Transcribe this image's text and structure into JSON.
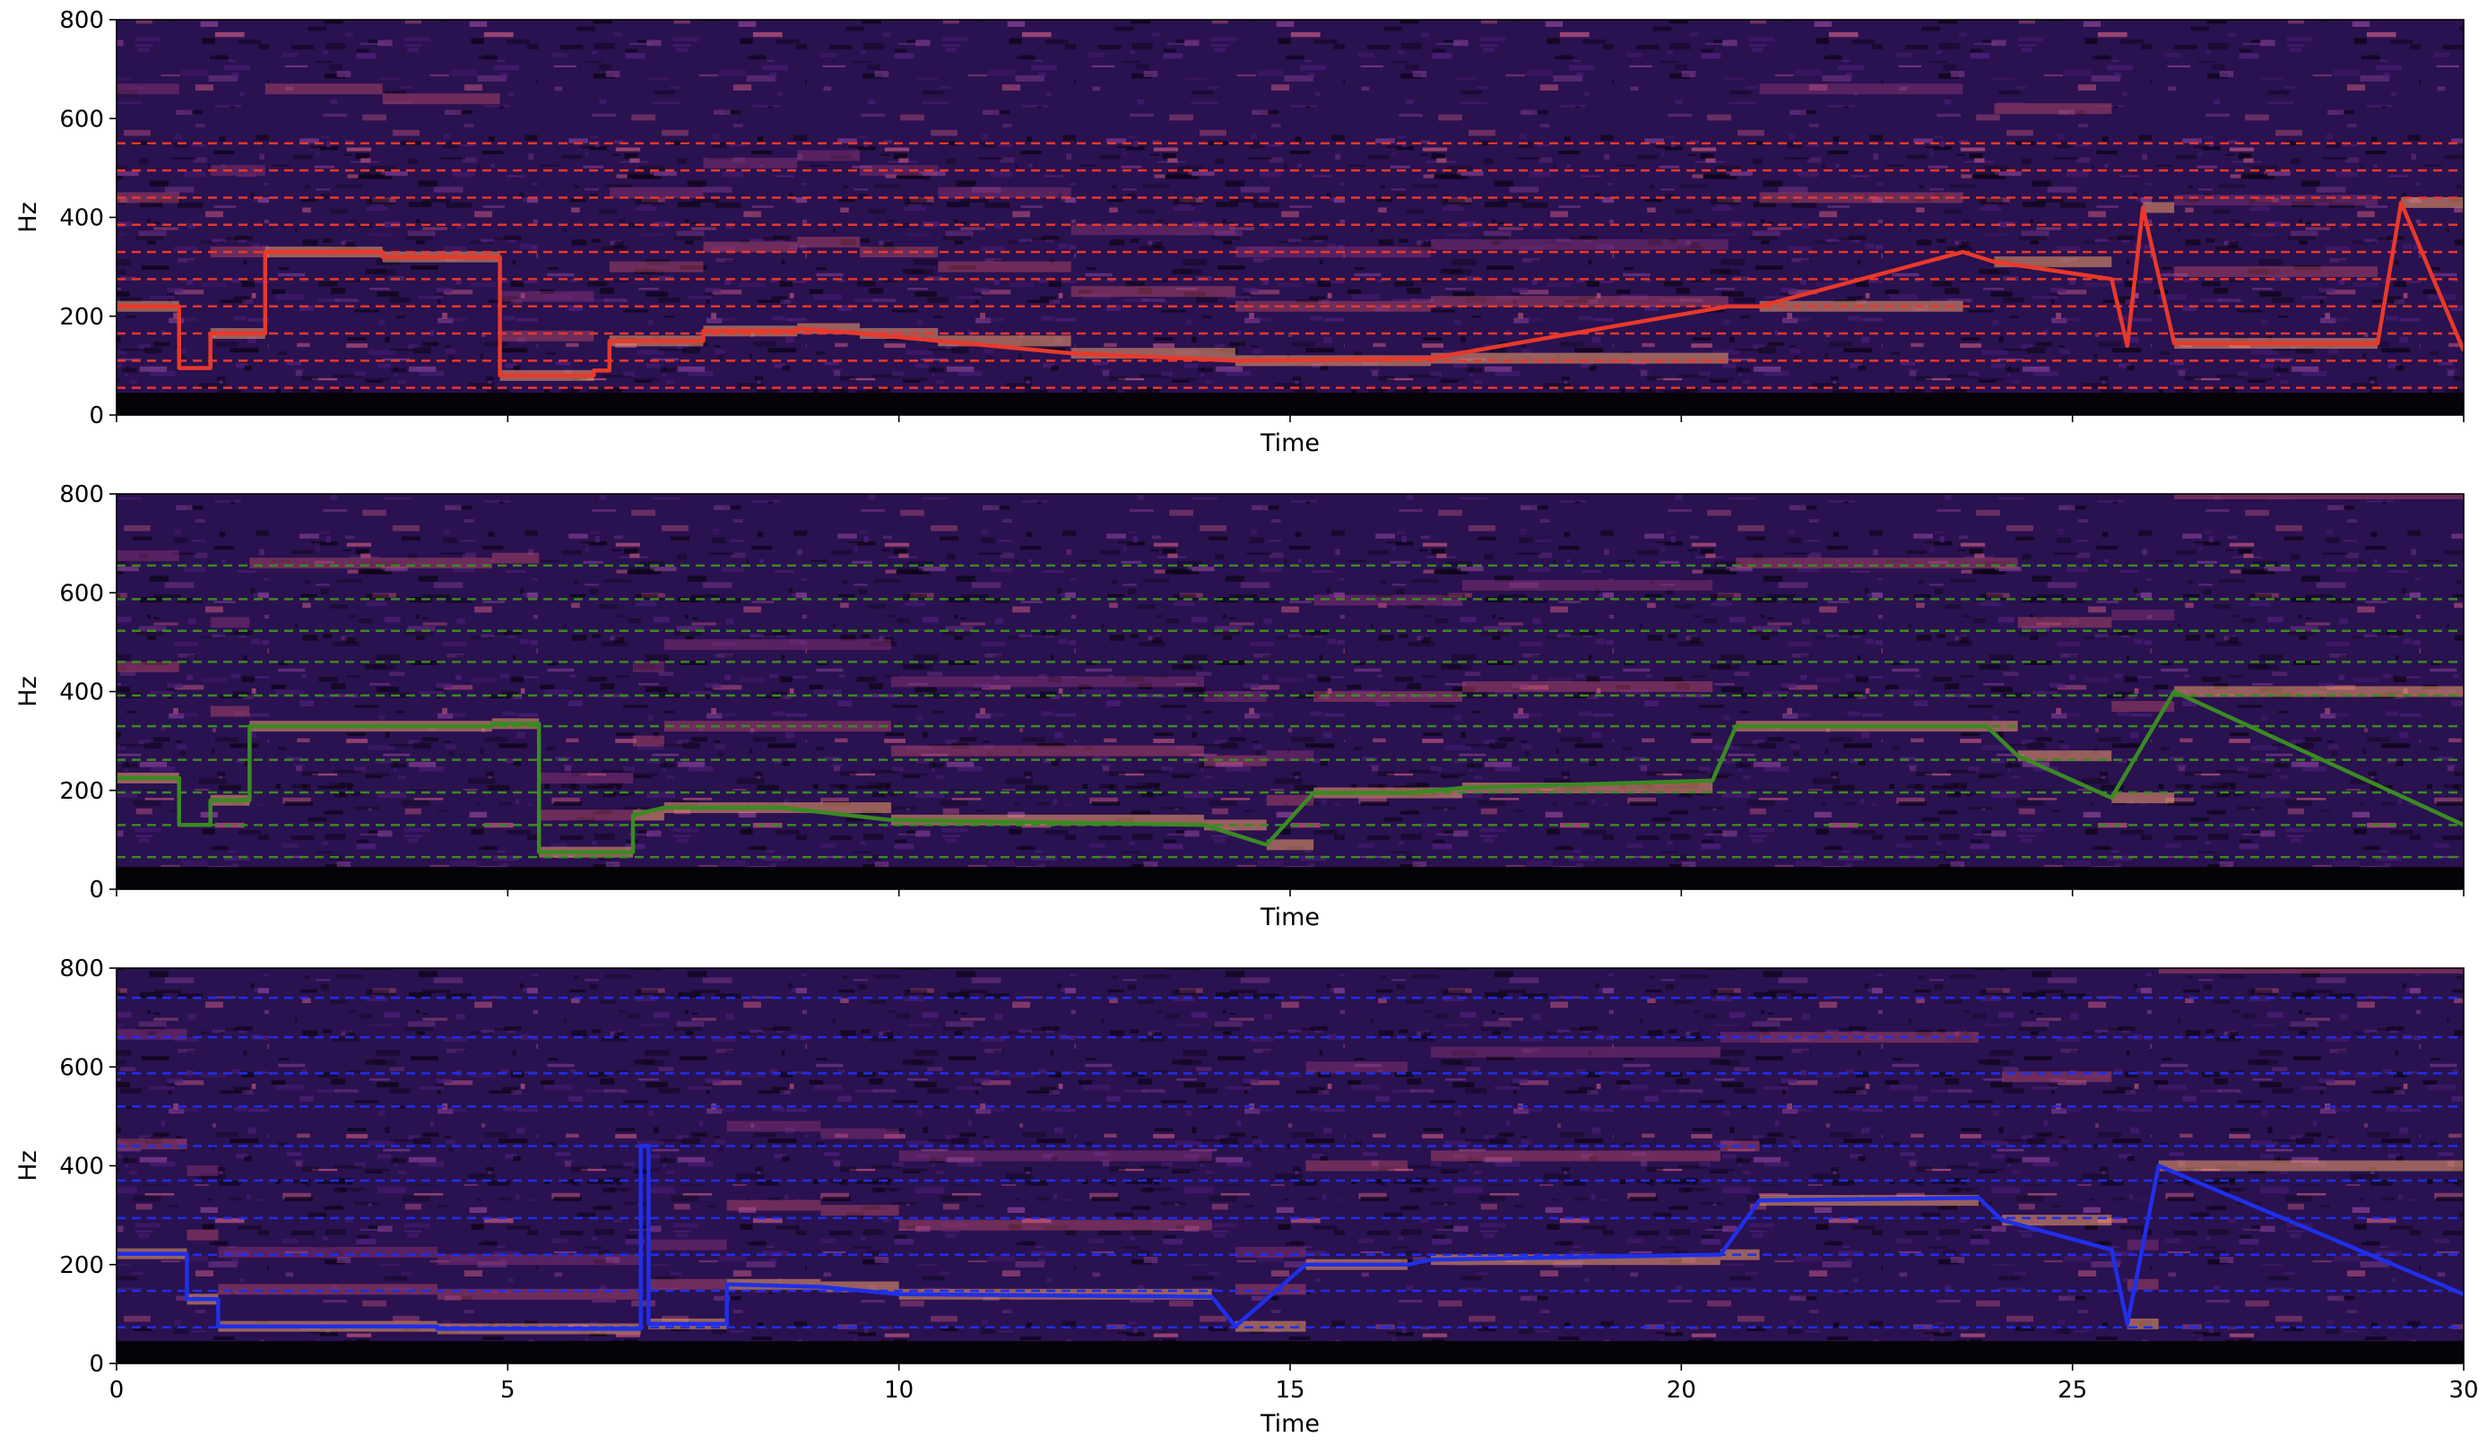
{
  "chart_data": [
    {
      "type": "line",
      "xlabel": "Time",
      "ylabel": "Hz",
      "xlim": [
        0,
        30
      ],
      "ylim": [
        0,
        800
      ],
      "yticks": [
        "0",
        "200",
        "400",
        "600",
        "800"
      ],
      "xticks": [
        "0",
        "5",
        "10",
        "15",
        "20",
        "25",
        "30"
      ],
      "show_xtick_labels": false,
      "background": "spectrogram (magma colormap)",
      "line_color": "#e8392a",
      "reference_lines_hz": [
        55,
        110,
        165,
        220,
        275,
        330,
        385,
        440,
        495,
        550
      ],
      "series": [
        {
          "x": [
            0,
            0.8,
            0.8,
            1.2,
            1.2,
            1.9,
            1.9,
            3.4,
            3.4,
            4.9,
            4.9,
            6.1,
            6.1,
            6.3,
            6.3,
            7.5,
            7.5,
            8.7,
            8.7,
            9.5,
            10.5,
            10.5,
            12.2,
            12.2,
            14.3,
            14.3,
            16.8,
            16.8,
            20.6,
            20.6,
            21.0,
            21.0,
            23.6,
            23.6,
            24.0,
            24.0,
            25.5,
            25.5,
            25.7,
            25.7,
            25.9,
            25.9,
            26.3,
            26.3,
            28.0,
            28.0,
            28.9,
            28.9,
            29.2,
            29.2,
            30
          ],
          "y": [
            220,
            220,
            95,
            95,
            165,
            165,
            330,
            330,
            320,
            320,
            80,
            80,
            90,
            90,
            150,
            150,
            170,
            170,
            175,
            165,
            150,
            150,
            125,
            125,
            110,
            110,
            115,
            115,
            220,
            220,
            220,
            220,
            330,
            330,
            310,
            310,
            275,
            275,
            140,
            140,
            420,
            420,
            145,
            145,
            145,
            145,
            145,
            145,
            430,
            430,
            130
          ]
        }
      ]
    },
    {
      "type": "line",
      "xlabel": "Time",
      "ylabel": "Hz",
      "xlim": [
        0,
        30
      ],
      "ylim": [
        0,
        800
      ],
      "yticks": [
        "0",
        "200",
        "400",
        "600",
        "800"
      ],
      "xticks": [
        "0",
        "5",
        "10",
        "15",
        "20",
        "25",
        "30"
      ],
      "show_xtick_labels": false,
      "background": "spectrogram (magma colormap)",
      "line_color": "#3a8a22",
      "reference_lines_hz": [
        65,
        130,
        196,
        262,
        330,
        392,
        460,
        523,
        587,
        655
      ],
      "series": [
        {
          "x": [
            0,
            0.8,
            0.8,
            1.2,
            1.2,
            1.7,
            1.7,
            4.8,
            4.8,
            5.4,
            5.4,
            6.6,
            6.6,
            7.0,
            8.5,
            9.9,
            9.9,
            13.9,
            13.9,
            14.7,
            14.7,
            15.3,
            15.3,
            16.5,
            16.5,
            17.2,
            20.4,
            20.4,
            20.7,
            20.7,
            23.9,
            23.9,
            24.3,
            24.3,
            25.5,
            25.5,
            26.3,
            26.3,
            30
          ],
          "y": [
            225,
            225,
            130,
            130,
            180,
            180,
            330,
            330,
            335,
            335,
            75,
            75,
            150,
            165,
            165,
            140,
            140,
            130,
            130,
            90,
            90,
            195,
            195,
            195,
            195,
            205,
            220,
            220,
            330,
            330,
            330,
            330,
            270,
            270,
            185,
            185,
            400,
            400,
            130
          ]
        }
      ]
    },
    {
      "type": "line",
      "xlabel": "Time",
      "ylabel": "Hz",
      "xlim": [
        0,
        30
      ],
      "ylim": [
        0,
        800
      ],
      "yticks": [
        "0",
        "200",
        "400",
        "600",
        "800"
      ],
      "xticks": [
        "0",
        "5",
        "10",
        "15",
        "20",
        "25",
        "30"
      ],
      "show_xtick_labels": true,
      "background": "spectrogram (magma colormap)",
      "line_color": "#1f2fe8",
      "reference_lines_hz": [
        73,
        147,
        220,
        294,
        370,
        440,
        520,
        587,
        660,
        740
      ],
      "series": [
        {
          "x": [
            0,
            0.9,
            0.9,
            1.3,
            1.3,
            4.1,
            4.1,
            6.7,
            6.7,
            6.8,
            6.8,
            7.8,
            7.8,
            9.0,
            10.0,
            14.0,
            14.0,
            14.3,
            14.3,
            15.2,
            15.2,
            16.5,
            16.5,
            16.8,
            20.5,
            20.5,
            21.0,
            21.0,
            23.8,
            23.8,
            24.1,
            24.1,
            25.5,
            25.5,
            25.7,
            25.7,
            26.1,
            26.1,
            30
          ],
          "y": [
            222,
            222,
            130,
            130,
            75,
            75,
            70,
            70,
            440,
            440,
            80,
            80,
            160,
            155,
            140,
            135,
            135,
            75,
            75,
            200,
            200,
            200,
            200,
            210,
            220,
            220,
            330,
            330,
            335,
            335,
            290,
            290,
            230,
            230,
            80,
            80,
            400,
            400,
            140
          ]
        }
      ]
    }
  ]
}
